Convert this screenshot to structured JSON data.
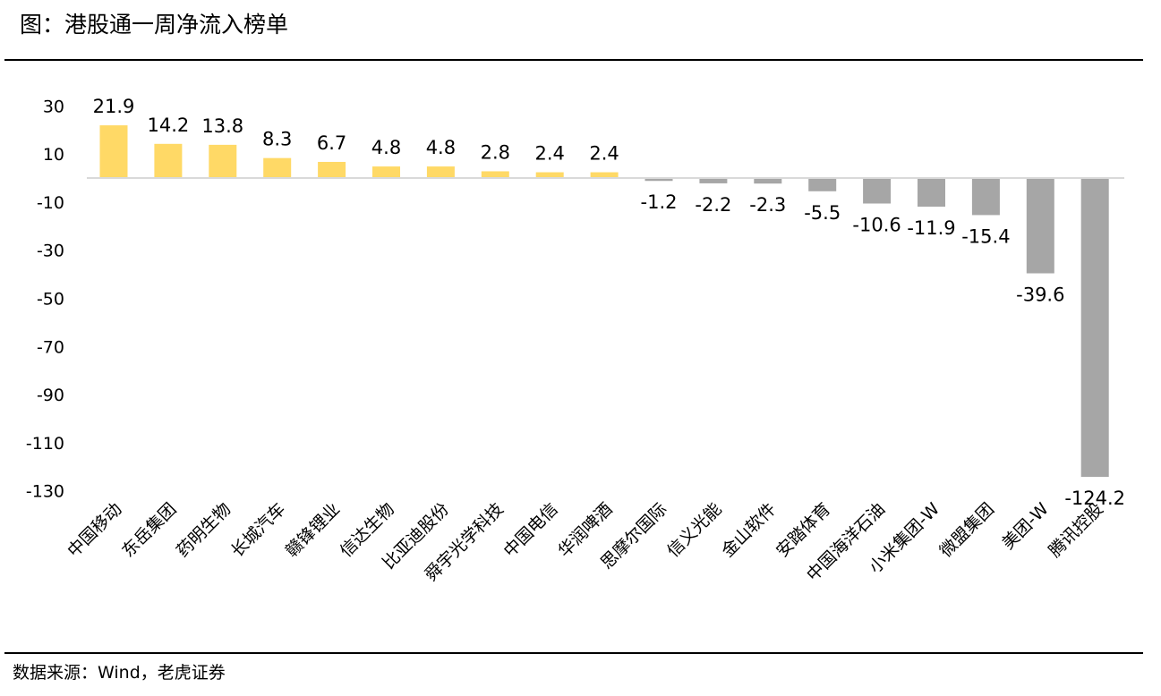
{
  "title": "图：港股通一周净流入榜单",
  "source": "数据来源：Wind，老虎证券",
  "colors": {
    "positive": "#FFD966",
    "negative": "#A6A6A6",
    "axis": "#D9D9D9"
  },
  "chart_data": {
    "type": "bar",
    "title": "图：港股通一周净流入榜单",
    "xlabel": "",
    "ylabel": "",
    "yticks": [
      30,
      10,
      -10,
      -30,
      -50,
      -70,
      -90,
      -110,
      -130
    ],
    "ylim": [
      -140,
      35
    ],
    "grid": false,
    "categories": [
      "中国移动",
      "东岳集团",
      "药明生物",
      "长城汽车",
      "赣锋锂业",
      "信达生物",
      "比亚迪股份",
      "舜宇光学科技",
      "中国电信",
      "华润啤酒",
      "思摩尔国际",
      "信义光能",
      "金山软件",
      "安踏体育",
      "中国海洋石油",
      "小米集团-W",
      "微盟集团",
      "美团-W",
      "腾讯控股"
    ],
    "values": [
      21.9,
      14.2,
      13.8,
      8.3,
      6.7,
      4.8,
      4.8,
      2.8,
      2.4,
      2.4,
      -1.2,
      -2.2,
      -2.3,
      -5.5,
      -10.6,
      -11.9,
      -15.4,
      -39.6,
      -124.2
    ]
  }
}
